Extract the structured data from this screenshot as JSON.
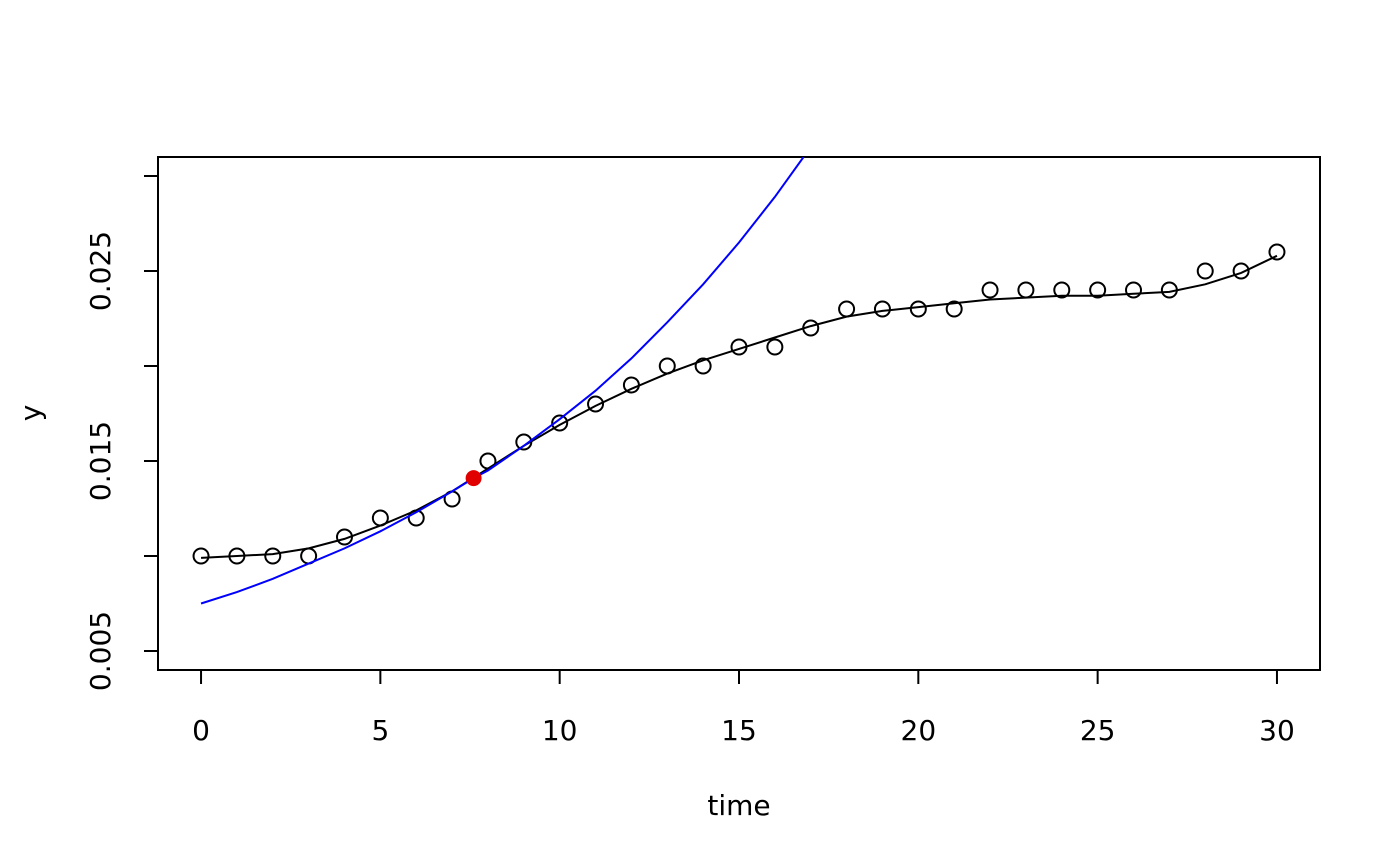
{
  "chart_data": {
    "type": "scatter",
    "title": "",
    "xlabel": "time",
    "ylabel": "y",
    "xlim": [
      -1.2,
      31.2
    ],
    "ylim": [
      0.004,
      0.031
    ],
    "x_ticks": [
      0,
      5,
      10,
      15,
      20,
      25,
      30
    ],
    "x_tick_labels": [
      "0",
      "5",
      "10",
      "15",
      "20",
      "25",
      "30"
    ],
    "y_ticks": [
      0.005,
      0.01,
      0.015,
      0.02,
      0.025,
      0.03
    ],
    "y_tick_labels": [
      "0.005",
      "",
      "0.015",
      "",
      "0.025",
      ""
    ],
    "grid": false,
    "legend": "none",
    "series": [
      {
        "kind": "points",
        "marker": "open-circle",
        "color": "#000000",
        "x": [
          0,
          1,
          2,
          3,
          4,
          5,
          6,
          7,
          8,
          9,
          10,
          11,
          12,
          13,
          14,
          15,
          16,
          17,
          18,
          19,
          20,
          21,
          22,
          23,
          24,
          25,
          26,
          27,
          28,
          29,
          30
        ],
        "y": [
          0.01,
          0.01,
          0.01,
          0.01,
          0.011,
          0.012,
          0.012,
          0.013,
          0.015,
          0.016,
          0.017,
          0.018,
          0.019,
          0.02,
          0.02,
          0.021,
          0.021,
          0.022,
          0.023,
          0.023,
          0.023,
          0.023,
          0.024,
          0.024,
          0.024,
          0.024,
          0.024,
          0.024,
          0.025,
          0.025,
          0.026
        ]
      },
      {
        "kind": "line",
        "color": "#000000",
        "x": [
          0,
          1,
          2,
          3,
          4,
          5,
          6,
          7,
          8,
          9,
          10,
          11,
          12,
          13,
          14,
          15,
          16,
          17,
          18,
          19,
          20,
          21,
          22,
          23,
          24,
          25,
          26,
          27,
          28,
          29,
          30
        ],
        "y": [
          0.0099,
          0.01,
          0.0101,
          0.0104,
          0.0109,
          0.0116,
          0.0124,
          0.0134,
          0.0146,
          0.0158,
          0.0169,
          0.0179,
          0.0188,
          0.0196,
          0.0203,
          0.0209,
          0.0215,
          0.0221,
          0.0226,
          0.0229,
          0.0231,
          0.0233,
          0.0235,
          0.0236,
          0.0237,
          0.0237,
          0.0238,
          0.0239,
          0.0243,
          0.0249,
          0.0258
        ]
      },
      {
        "kind": "line",
        "color": "#0000ff",
        "x": [
          0,
          1,
          2,
          3,
          4,
          5,
          6,
          7,
          7.6,
          8,
          9,
          10,
          11,
          12,
          13,
          14,
          15,
          16,
          16.8
        ],
        "y": [
          0.0075,
          0.0081,
          0.0088,
          0.0096,
          0.0104,
          0.0113,
          0.0123,
          0.0134,
          0.0141,
          0.0145,
          0.0158,
          0.0172,
          0.0187,
          0.0204,
          0.0223,
          0.0243,
          0.0265,
          0.0289,
          0.031
        ]
      },
      {
        "kind": "points",
        "marker": "filled-circle",
        "color": "#e00000",
        "x": [
          7.6
        ],
        "y": [
          0.0141
        ]
      }
    ]
  }
}
